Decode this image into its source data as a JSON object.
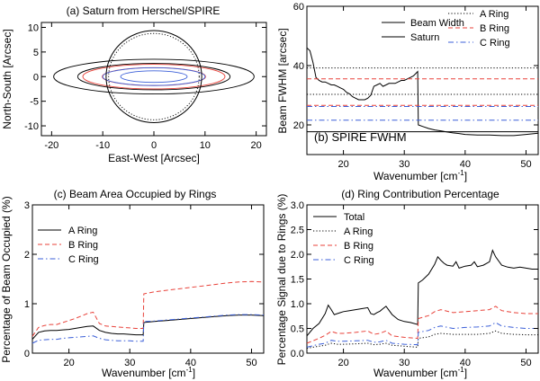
{
  "chart_data": [
    {
      "id": "a",
      "type": "scatter",
      "title": "(a) Saturn from Herschel/SPIRE",
      "xlabel": "East-West [Arcsec]",
      "ylabel": "North-South [Arcsec]",
      "xlim": [
        -22,
        22
      ],
      "ylim": [
        -12,
        11
      ],
      "xticks": [
        -20,
        -10,
        0,
        10,
        20
      ],
      "yticks": [
        -10,
        -5,
        0,
        5,
        10
      ],
      "colors": {
        "disk": "#000000",
        "a_ring": "#000000",
        "b_ring": "#e8423a",
        "c_ring": "#3b5fd8"
      },
      "disk": {
        "equatorial_radius": 9.35,
        "polar_radius": 8.35
      },
      "rings": [
        {
          "name": "A Ring",
          "inner": 14.9,
          "outer": 19.6
        },
        {
          "name": "B Ring",
          "inner": 10.1,
          "outer": 13.9
        },
        {
          "name": "C Ring",
          "inner": 6.5,
          "outer": 10.0
        }
      ],
      "ring_tilt_ratio": 0.045
    },
    {
      "id": "b",
      "type": "line",
      "title": "(b) SPIRE FWHM",
      "xlabel": "Wavenumber [cm",
      "xlabel_sup": "-1",
      "xlabel_end": "]",
      "ylabel": "Beam FWHM [arcsec]",
      "xlim": [
        14,
        52
      ],
      "ylim": [
        10,
        60
      ],
      "xticks": [
        20,
        30,
        40,
        50
      ],
      "yticks": [
        20,
        40,
        60
      ],
      "legend": [
        "Beam Width",
        "Saturn",
        "A Ring",
        "B Ring",
        "C Ring"
      ],
      "series": [
        {
          "name": "Beam Width",
          "style": "solid",
          "color": "#000000",
          "x": [
            14.0,
            14.5,
            15.0,
            15.5,
            16.0,
            16.5,
            17.0,
            17.5,
            18.0,
            18.5,
            19.0,
            19.5,
            20.0,
            20.5,
            21.0,
            21.5,
            22.0,
            22.5,
            23.0,
            23.5,
            24.0,
            24.5,
            25.0,
            25.5,
            26.0,
            26.5,
            27.0,
            27.5,
            28.0,
            28.5,
            29.0,
            29.5,
            30.0,
            30.5,
            31.0,
            31.5,
            32.2,
            32.3,
            33.0,
            34.0,
            35.0,
            36.0,
            37.0,
            38.0,
            39.0,
            40.0,
            42.0,
            44.0,
            46.0,
            48.0,
            50.0,
            52.0
          ],
          "y": [
            46,
            45,
            41,
            36,
            35,
            34.5,
            34.5,
            34,
            33.5,
            33.5,
            33,
            32.5,
            32,
            31,
            30.5,
            29.5,
            29,
            28.5,
            28.5,
            28.5,
            29,
            30,
            33,
            33.5,
            34,
            33,
            33.5,
            34,
            34,
            34,
            34.5,
            35,
            35,
            35.5,
            36,
            36.5,
            38,
            20,
            19.5,
            18.8,
            18.3,
            18,
            17.6,
            17.3,
            17.1,
            16.8,
            16.6,
            16.6,
            16.4,
            16.4,
            16.8,
            17.2
          ]
        },
        {
          "name": "Saturn",
          "style": "solid",
          "color": "#000000",
          "x": [
            14,
            52
          ],
          "y": [
            17.7,
            17.7
          ]
        },
        {
          "name": "A Ring",
          "style": "dotted",
          "color": "#000000",
          "x": [
            14,
            52
          ],
          "y": [
            39.2,
            39.2
          ]
        },
        {
          "name": "B Ring",
          "style": "dashed",
          "color": "#e8423a",
          "x": [
            14,
            52
          ],
          "y": [
            35.5,
            35.5
          ]
        },
        {
          "name": "A Ring",
          "style": "dotted",
          "color": "#000000",
          "x": [
            14,
            52
          ],
          "y": [
            30.3,
            30.3
          ]
        },
        {
          "name": "B Ring",
          "style": "dashed",
          "color": "#e8423a",
          "x": [
            14,
            52
          ],
          "y": [
            26.6,
            26.6
          ]
        },
        {
          "name": "C Ring",
          "style": "dashdot",
          "color": "#3b5fd8",
          "x": [
            14,
            52
          ],
          "y": [
            26.2,
            26.2
          ]
        },
        {
          "name": "C Ring",
          "style": "dashdot",
          "color": "#3b5fd8",
          "x": [
            14,
            52
          ],
          "y": [
            21.6,
            21.6
          ]
        }
      ]
    },
    {
      "id": "c",
      "type": "line",
      "title": "(c) Beam Area Occupied by Rings",
      "xlabel": "Wavenumber [cm",
      "xlabel_sup": "-1",
      "xlabel_end": "]",
      "ylabel": "Percentage of Beam Occupied (%)",
      "xlim": [
        14,
        52
      ],
      "ylim": [
        0,
        3
      ],
      "xticks": [
        20,
        30,
        40,
        50
      ],
      "yticks": [
        0,
        1,
        2,
        3
      ],
      "legend": [
        "A Ring",
        "B Ring",
        "C Ring"
      ],
      "series": [
        {
          "name": "A Ring",
          "style": "solid",
          "color": "#000000",
          "x": [
            14,
            15,
            16,
            17,
            18,
            19,
            20,
            21,
            22,
            23,
            24,
            25,
            26,
            27,
            28,
            29,
            30,
            31,
            32.2,
            32.3,
            34,
            36,
            38,
            40,
            42,
            44,
            46,
            48,
            50,
            52
          ],
          "y": [
            0.28,
            0.42,
            0.45,
            0.46,
            0.46,
            0.47,
            0.48,
            0.5,
            0.52,
            0.54,
            0.55,
            0.46,
            0.42,
            0.4,
            0.39,
            0.39,
            0.38,
            0.37,
            0.37,
            0.62,
            0.64,
            0.66,
            0.68,
            0.7,
            0.72,
            0.74,
            0.76,
            0.77,
            0.77,
            0.76
          ]
        },
        {
          "name": "B Ring",
          "style": "dashed",
          "color": "#e8423a",
          "x": [
            14,
            15,
            16,
            17,
            18,
            19,
            20,
            21,
            22,
            23,
            24,
            25,
            26,
            27,
            28,
            29,
            30,
            31,
            32.2,
            32.3,
            34,
            36,
            38,
            40,
            42,
            44,
            46,
            48,
            50,
            52
          ],
          "y": [
            0.34,
            0.52,
            0.56,
            0.58,
            0.58,
            0.62,
            0.66,
            0.7,
            0.75,
            0.8,
            0.83,
            0.6,
            0.55,
            0.54,
            0.53,
            0.52,
            0.51,
            0.5,
            0.5,
            1.2,
            1.24,
            1.27,
            1.3,
            1.33,
            1.36,
            1.39,
            1.42,
            1.44,
            1.45,
            1.44
          ]
        },
        {
          "name": "C Ring",
          "style": "dashdot",
          "color": "#3b5fd8",
          "x": [
            14,
            15,
            16,
            17,
            18,
            19,
            20,
            21,
            22,
            23,
            24,
            25,
            26,
            27,
            28,
            29,
            30,
            31,
            32.2,
            32.3,
            34,
            36,
            38,
            40,
            42,
            44,
            46,
            48,
            50,
            52
          ],
          "y": [
            0.2,
            0.26,
            0.27,
            0.28,
            0.28,
            0.3,
            0.31,
            0.32,
            0.33,
            0.34,
            0.35,
            0.3,
            0.27,
            0.26,
            0.25,
            0.25,
            0.25,
            0.24,
            0.24,
            0.64,
            0.65,
            0.67,
            0.69,
            0.71,
            0.73,
            0.75,
            0.77,
            0.78,
            0.78,
            0.77
          ]
        }
      ]
    },
    {
      "id": "d",
      "type": "line",
      "title": "(d) Ring Contribution Percentage",
      "xlabel": "Wavenumber [cm",
      "xlabel_sup": "-1",
      "xlabel_end": "]",
      "ylabel": "Percentage Signal due to Rings (%)",
      "xlim": [
        14,
        52
      ],
      "ylim": [
        0,
        3
      ],
      "xticks": [
        20,
        30,
        40,
        50
      ],
      "yticks": [
        0.0,
        0.5,
        1.0,
        1.5,
        2.0,
        2.5,
        3.0
      ],
      "ytick_labels": [
        "0.0",
        "0.5",
        "1.0",
        "1.5",
        "2.0",
        "2.5",
        "3.0"
      ],
      "legend": [
        "Total",
        "A Ring",
        "B Ring",
        "C Ring"
      ],
      "series": [
        {
          "name": "Total",
          "style": "solid",
          "color": "#000000",
          "x": [
            14,
            15,
            16,
            17,
            17.5,
            18,
            18.5,
            19,
            19.5,
            20,
            21,
            22,
            23,
            24,
            24.5,
            25,
            25.5,
            26,
            26.5,
            27,
            28,
            29,
            30,
            31,
            32.2,
            32.3,
            33,
            34,
            35,
            35.5,
            36,
            36.5,
            37,
            38,
            38.5,
            39,
            40,
            41,
            41.5,
            42,
            43,
            44,
            44.5,
            45,
            46,
            47,
            48,
            49,
            50,
            51,
            52
          ],
          "y": [
            0.35,
            0.5,
            0.6,
            0.8,
            0.97,
            0.88,
            0.78,
            0.8,
            0.82,
            0.84,
            0.86,
            0.88,
            0.9,
            0.92,
            0.8,
            0.78,
            0.82,
            0.85,
            0.9,
            0.95,
            0.78,
            0.68,
            0.64,
            0.62,
            0.58,
            1.42,
            1.48,
            1.6,
            1.8,
            1.95,
            1.88,
            1.82,
            1.78,
            1.76,
            1.85,
            1.72,
            1.76,
            1.78,
            1.85,
            1.75,
            1.78,
            1.85,
            2.08,
            1.95,
            1.78,
            1.74,
            1.72,
            1.74,
            1.72,
            1.7,
            1.7
          ]
        },
        {
          "name": "A Ring",
          "style": "dotted",
          "color": "#000000",
          "x": [
            14,
            16,
            17,
            18,
            19,
            20,
            22,
            24,
            25,
            26,
            27,
            28,
            30,
            32.2,
            32.3,
            34,
            35,
            36,
            38,
            40,
            42,
            44,
            45,
            46,
            48,
            50,
            52
          ],
          "y": [
            0.1,
            0.14,
            0.16,
            0.2,
            0.18,
            0.18,
            0.19,
            0.2,
            0.17,
            0.18,
            0.2,
            0.16,
            0.14,
            0.12,
            0.3,
            0.33,
            0.38,
            0.4,
            0.38,
            0.38,
            0.38,
            0.4,
            0.45,
            0.4,
            0.38,
            0.37,
            0.37
          ]
        },
        {
          "name": "B Ring",
          "style": "dashed",
          "color": "#e8423a",
          "x": [
            14,
            16,
            17,
            18,
            19,
            20,
            22,
            24,
            25,
            26,
            27,
            28,
            30,
            32.2,
            32.3,
            34,
            35,
            36,
            38,
            40,
            42,
            44,
            45,
            46,
            48,
            50,
            52
          ],
          "y": [
            0.2,
            0.3,
            0.36,
            0.44,
            0.4,
            0.4,
            0.42,
            0.45,
            0.38,
            0.4,
            0.45,
            0.35,
            0.32,
            0.3,
            0.7,
            0.76,
            0.84,
            0.88,
            0.82,
            0.84,
            0.86,
            0.88,
            0.95,
            0.86,
            0.82,
            0.8,
            0.8
          ]
        },
        {
          "name": "C Ring",
          "style": "dashdot",
          "color": "#3b5fd8",
          "x": [
            14,
            16,
            17,
            18,
            19,
            20,
            22,
            24,
            25,
            26,
            27,
            28,
            30,
            32.2,
            32.3,
            34,
            35,
            36,
            38,
            40,
            42,
            44,
            45,
            46,
            48,
            50,
            52
          ],
          "y": [
            0.12,
            0.18,
            0.2,
            0.26,
            0.24,
            0.24,
            0.25,
            0.26,
            0.22,
            0.23,
            0.26,
            0.2,
            0.18,
            0.17,
            0.42,
            0.46,
            0.52,
            0.55,
            0.5,
            0.52,
            0.53,
            0.55,
            0.62,
            0.55,
            0.52,
            0.5,
            0.5
          ]
        }
      ]
    }
  ]
}
